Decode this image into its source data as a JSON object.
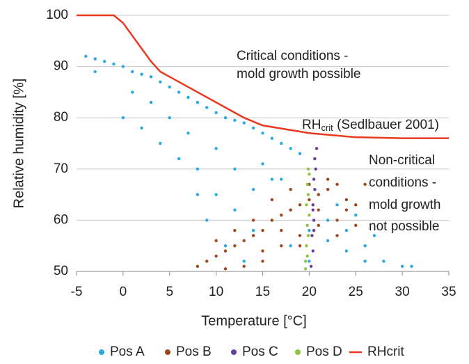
{
  "chart_data": {
    "type": "scatter",
    "xlabel": "Temperature [°C]",
    "ylabel": "Relative humidity [%]",
    "xlim": [
      -5,
      35
    ],
    "xticks": [
      -5,
      0,
      5,
      10,
      15,
      20,
      25,
      30,
      35
    ],
    "ylim": [
      50,
      100
    ],
    "yticks": [
      50,
      60,
      70,
      80,
      90,
      100
    ],
    "grid": true,
    "annotations": {
      "critical": [
        "Critical conditions -",
        "mold growth possible"
      ],
      "noncritical": [
        "Non-critical",
        "conditions -",
        "mold growth",
        "not possible"
      ],
      "rhcrit": {
        "main": "RH",
        "sub": "crit",
        "rest": " (Sedlbauer 2001)"
      }
    },
    "legend": "bottom",
    "series": [
      {
        "name": "Pos A",
        "color": "#29a9e0",
        "style": "markers",
        "x": [
          -4,
          -3,
          -2,
          -1,
          0,
          1,
          2,
          3,
          4,
          5,
          6,
          7,
          8,
          9,
          10,
          11,
          12,
          13,
          14,
          15,
          16,
          17,
          18,
          19,
          0,
          2,
          4,
          6,
          8,
          10,
          10,
          12,
          12,
          14,
          14,
          16,
          16,
          18,
          18,
          20,
          20,
          22,
          22,
          24,
          24,
          26,
          26,
          28,
          30,
          31,
          -3,
          1,
          3,
          5,
          7,
          9,
          8,
          11,
          13,
          15,
          17,
          21,
          23,
          25,
          27
        ],
        "y": [
          92,
          91.5,
          91,
          90.5,
          90,
          89,
          88.5,
          88,
          87,
          86,
          85,
          84,
          83,
          82,
          81,
          80,
          79.5,
          79,
          78,
          77,
          76,
          75,
          74,
          73,
          80,
          78,
          75,
          72,
          70,
          74,
          65,
          70,
          62,
          66,
          58,
          60,
          68,
          55,
          62,
          58,
          52,
          56,
          60,
          54,
          58,
          55,
          52,
          52,
          51,
          51,
          89,
          85,
          83,
          80,
          77,
          60,
          65,
          55,
          52,
          71,
          68,
          65,
          63,
          61,
          57
        ]
      },
      {
        "name": "Pos B",
        "color": "#a0461b",
        "style": "markers",
        "x": [
          8,
          9,
          10,
          11,
          12,
          13,
          14,
          15,
          16,
          17,
          18,
          19,
          20,
          21,
          22,
          23,
          24,
          25,
          26,
          11,
          13,
          15,
          17,
          19,
          21,
          23,
          25,
          18,
          20,
          22,
          16,
          14,
          12,
          10,
          24,
          15,
          17,
          19,
          21,
          23
        ],
        "y": [
          51,
          52,
          53,
          54,
          55,
          56,
          57,
          58,
          60,
          61,
          62,
          63,
          64,
          65,
          66,
          67,
          64,
          63,
          67,
          50.5,
          51,
          52,
          55,
          57,
          59,
          60,
          59,
          66,
          67,
          68,
          64,
          60,
          58,
          56,
          62,
          54,
          58,
          55,
          62,
          57
        ]
      },
      {
        "name": "Pos C",
        "color": "#6a3d9a",
        "style": "markers",
        "x": [
          20.2,
          20.4,
          20.3,
          20.5,
          20.4,
          20.6,
          20.5,
          20.7,
          20.6,
          20.8,
          20.4,
          20.5
        ],
        "y": [
          51,
          54,
          57,
          60,
          63,
          66,
          68,
          70,
          72,
          74,
          62,
          58
        ]
      },
      {
        "name": "Pos D",
        "color": "#8cc63f",
        "style": "markers",
        "x": [
          19.6,
          19.8,
          19.7,
          19.9,
          19.8,
          20.0,
          19.7,
          19.9,
          19.8,
          20.0,
          19.9,
          19.6
        ],
        "y": [
          50.5,
          53,
          55,
          57,
          59,
          61,
          63,
          65,
          67,
          69,
          70,
          52
        ]
      },
      {
        "name": "RHcrit",
        "color": "#e8391e",
        "style": "line",
        "x": [
          -5,
          -1,
          0,
          1,
          2,
          3,
          4,
          5,
          7,
          10,
          13,
          15,
          20,
          25,
          30,
          35
        ],
        "y": [
          100,
          100,
          98.5,
          96,
          93.5,
          91,
          89,
          88,
          86,
          83,
          80,
          78.5,
          77,
          76.2,
          76,
          76
        ]
      }
    ]
  }
}
